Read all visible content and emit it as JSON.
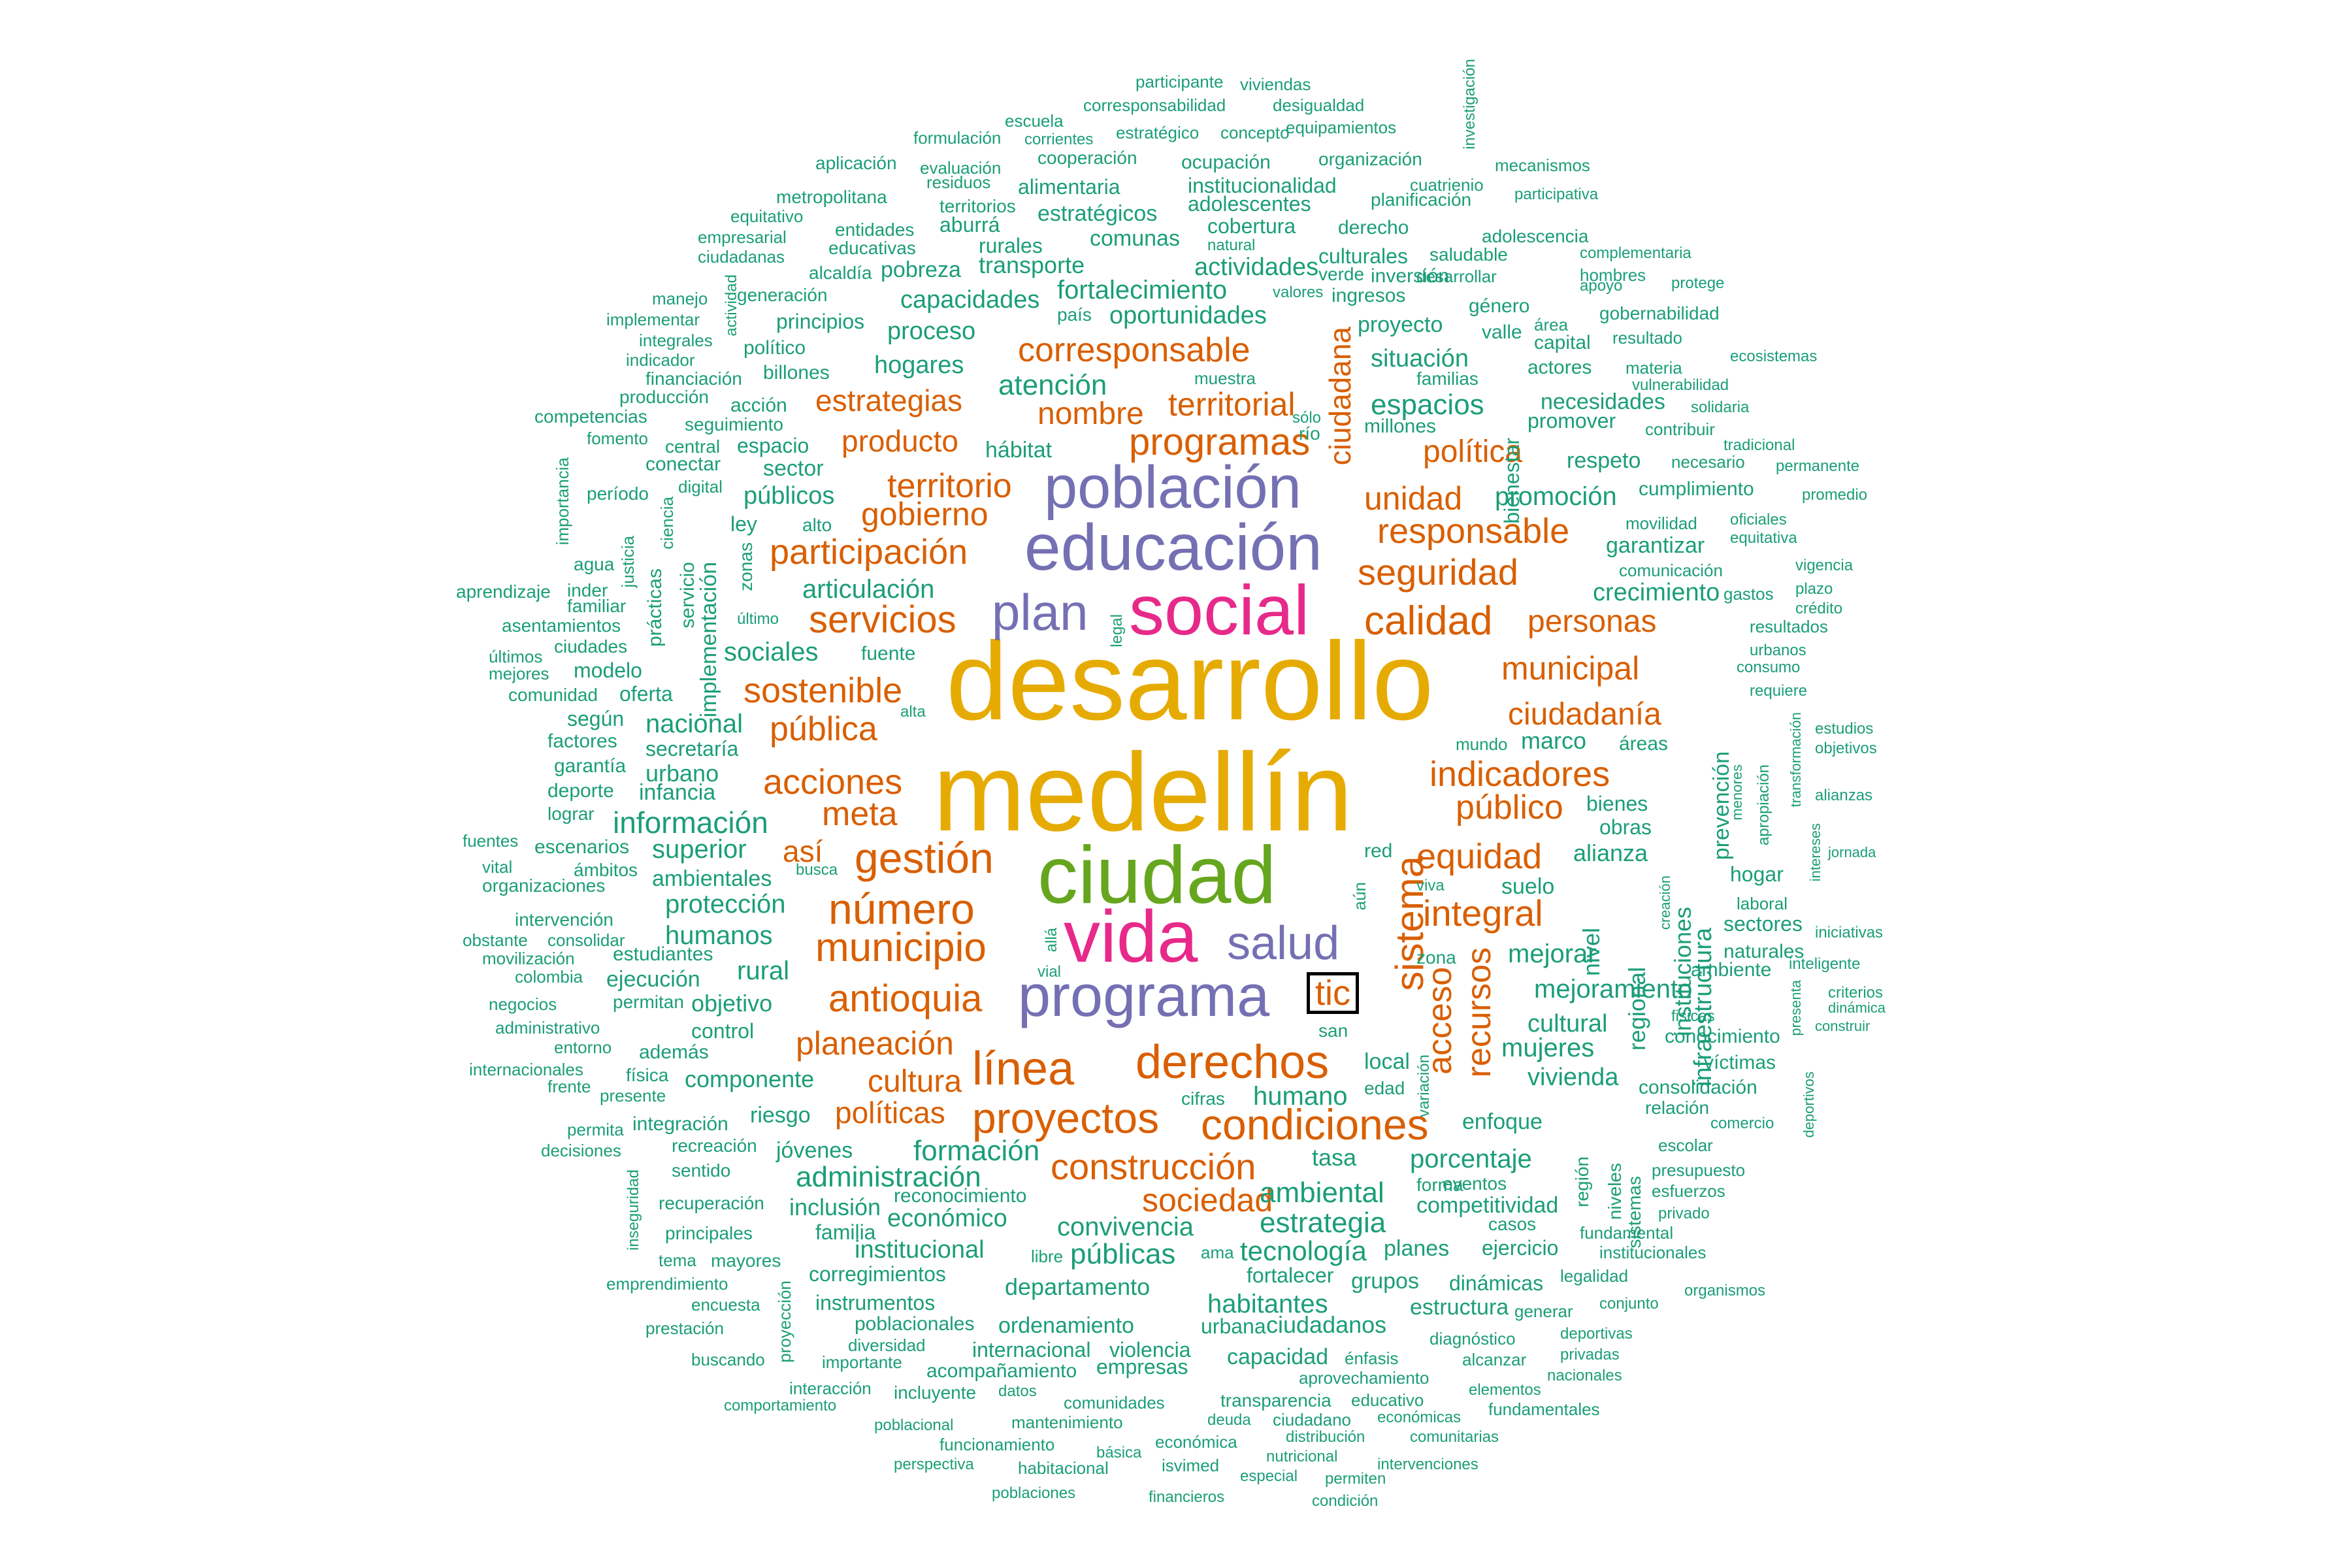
{
  "colors": {
    "gold": "#E6AB02",
    "green": "#66A61E",
    "magenta": "#E7298A",
    "purple": "#7570B3",
    "orange": "#D95F02",
    "teal": "#1B9E77"
  },
  "words": [
    "desarrollo",
    "medellín",
    "ciudad",
    "social",
    "vida",
    "educación",
    "población",
    "programa",
    "plan",
    "salud",
    "tic",
    "línea",
    "derechos",
    "proyectos",
    "condiciones",
    "construcción",
    "gestión",
    "número",
    "municipio",
    "antioquia",
    "participación",
    "servicios",
    "sostenible",
    "pública",
    "acciones",
    "meta",
    "así",
    "planeación",
    "cultura",
    "políticas",
    "sistema",
    "acceso",
    "recursos",
    "integral",
    "equidad",
    "indicadores",
    "público",
    "ciudadanía",
    "municipal",
    "calidad",
    "personas",
    "seguridad",
    "responsable",
    "unidad",
    "política",
    "espacios",
    "programas",
    "territorial",
    "corresponsable",
    "estrategias",
    "nombre",
    "producto",
    "territorio",
    "gobierno",
    "sociedad",
    "ciudadana",
    "atención",
    "información",
    "formación",
    "administración",
    "estrategia",
    "ambiental",
    "porcentaje",
    "convivencia",
    "públicas",
    "tecnología",
    "humano",
    "mejorar",
    "mejoramiento",
    "mujeres",
    "vivienda",
    "cultural",
    "crecimiento",
    "promoción",
    "fortalecimiento",
    "oportunidades",
    "actividades",
    "capacidades",
    "principios",
    "hogares",
    "proceso",
    "articulación",
    "sociales",
    "nacional",
    "urbano",
    "superior",
    "protección",
    "humanos",
    "rural",
    "objetivo",
    "control",
    "componente",
    "inclusión",
    "institucional",
    "familia",
    "económico",
    "reconocimiento",
    "departamento",
    "habitantes",
    "fortalecer",
    "ciudadanos",
    "grupos",
    "planes",
    "ejercicio",
    "competitividad",
    "estructura",
    "dinámicas",
    "situación",
    "necesidades",
    "respeto",
    "garantizar",
    "cumplimiento",
    "marco",
    "bienes",
    "obras",
    "alianza",
    "suelo",
    "regional",
    "nivel",
    "infraestructura",
    "instituciones",
    "prevención",
    "hogar",
    "sectores",
    "ambiente",
    "naturales",
    "conocimiento",
    "víctimas",
    "consolidación",
    "relación",
    "enfoque",
    "región",
    "niveles",
    "sistemas",
    "tasa",
    "local",
    "edad",
    "cifras",
    "riesgo",
    "jóvenes",
    "sentido",
    "integración",
    "fuente",
    "sector",
    "espacio",
    "públicos",
    "ley",
    "alto",
    "billones",
    "político",
    "hábitat",
    "comunas",
    "transporte",
    "pobreza",
    "rurales",
    "estratégicos",
    "aburrá",
    "alimentaria",
    "institucionalidad",
    "adolescentes",
    "cobertura",
    "culturales",
    "inversión",
    "ingresos",
    "proyecto",
    "bienestar",
    "capital",
    "actores",
    "valle",
    "género",
    "derecho",
    "ocupación",
    "organización",
    "cooperación",
    "evaluación",
    "formulación",
    "escuela",
    "corresponsabilidad",
    "estratégico",
    "concepto",
    "equipamientos",
    "vivienda",
    "participante",
    "viviendas",
    "desigualdad",
    "investigación",
    "mecanismos",
    "cuatrienio",
    "participativa",
    "planificación",
    "adolescencia",
    "complementaria",
    "hombres",
    "protege",
    "apoyo",
    "gobernabilidad",
    "resultado",
    "ecosistemas",
    "materia",
    "vulnerabilidad",
    "solidaria",
    "contribuir",
    "tradicional",
    "permanente",
    "promedio",
    "necesario",
    "oficiales",
    "equitativa",
    "movilidad",
    "comunicación",
    "vigencia",
    "plazo",
    "crédito",
    "gastos",
    "resultados",
    "urbanos",
    "consumo",
    "requiere",
    "estudios",
    "objetivos",
    "alianzas",
    "transformación",
    "intereses",
    "apropiación",
    "menores",
    "jornada",
    "iniciativas",
    "inteligente",
    "criterios",
    "dinámica",
    "construir",
    "presenta",
    "deportivos",
    "comercio",
    "escolar",
    "presupuesto",
    "esfuerzos",
    "privado",
    "institucionales",
    "organismos",
    "fundamental",
    "legalidad",
    "conjunto",
    "deportivas",
    "privadas",
    "nacionales",
    "fundamentales",
    "generar",
    "alcanzar",
    "diagnóstico",
    "elementos",
    "económicas",
    "comunitarias",
    "intervenciones",
    "aprovechamiento",
    "énfasis",
    "educativo",
    "transparencia",
    "ciudadano",
    "distribución",
    "nutricional",
    "permiten",
    "condición",
    "especial",
    "isvimed",
    "económica",
    "deuda",
    "financieros",
    "básica",
    "habitacional",
    "funcionamiento",
    "mantenimiento",
    "comunidades",
    "poblacional",
    "perspectiva",
    "poblaciones",
    "datos",
    "incluyente",
    "acompañamiento",
    "empresas",
    "internacional",
    "violencia",
    "capacidad",
    "urbana",
    "ordenamiento",
    "poblacionales",
    "diversidad",
    "importante",
    "interacción",
    "comportamiento",
    "buscando",
    "prestación",
    "encuesta",
    "emprendimiento",
    "tema",
    "mayores",
    "principales",
    "recuperación",
    "inseguridad",
    "proyección",
    "instrumentos",
    "corregimientos",
    "recreación",
    "decisiones",
    "permita",
    "frente",
    "presente",
    "internacionales",
    "física",
    "entorno",
    "administrativo",
    "además",
    "negocios",
    "permitan",
    "ejecución",
    "colombia",
    "movilización",
    "consolidar",
    "obstante",
    "intervención",
    "estudiantes",
    "organizaciones",
    "ámbitos",
    "vital",
    "escenarios",
    "fuentes",
    "ambientales",
    "lograr",
    "deporte",
    "infancia",
    "garantía",
    "secretaría",
    "factores",
    "según",
    "oferta",
    "comunidad",
    "mejores",
    "últimos",
    "ciudades",
    "modelo",
    "asentamientos",
    "familiar",
    "aprendizaje",
    "inder",
    "agua",
    "justicia",
    "prácticas",
    "implementación",
    "servicio",
    "zonas",
    "último",
    "importancia",
    "período",
    "digital",
    "ciencia",
    "conectar",
    "central",
    "fomento",
    "competencias",
    "seguimiento",
    "producción",
    "acción",
    "financiación",
    "indicador",
    "integrales",
    "implementar",
    "manejo",
    "actividad",
    "generación",
    "alcaldía",
    "ciudadanas",
    "empresarial",
    "equitativo",
    "metropolitana",
    "entidades",
    "educativas",
    "aplicación",
    "residuos",
    "territorios",
    "corrientes",
    "natural",
    "valores",
    "verde",
    "saludable",
    "desarrollar",
    "área",
    "país",
    "familias",
    "muestra",
    "millones",
    "promover",
    "río",
    "sólo",
    "legal",
    "alta",
    "busca",
    "creación",
    "mundo",
    "áreas",
    "laboral",
    "vial",
    "allá",
    "aún",
    "red",
    "viva",
    "zona",
    "san",
    "ama",
    "libre",
    "variación",
    "casos",
    "eventos",
    "forma",
    "fisicas",
    "ciudadanas"
  ]
}
